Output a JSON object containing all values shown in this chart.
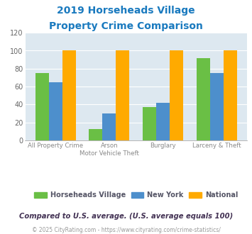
{
  "title_line1": "2019 Horseheads Village",
  "title_line2": "Property Crime Comparison",
  "title_color": "#1a7abf",
  "cat_labels_top": [
    "",
    "Arson",
    "",
    "Burglary",
    ""
  ],
  "cat_labels_bottom": [
    "All Property Crime",
    "Motor Vehicle Theft",
    "",
    "Larceny & Theft",
    ""
  ],
  "horseheads": [
    75,
    13,
    37,
    92
  ],
  "newyork": [
    65,
    30,
    42,
    75
  ],
  "national": [
    100,
    100,
    100,
    100
  ],
  "colors": {
    "horseheads": "#6abf45",
    "newyork": "#4d8fcc",
    "national": "#ffaa00"
  },
  "ylim": [
    0,
    120
  ],
  "yticks": [
    0,
    20,
    40,
    60,
    80,
    100,
    120
  ],
  "background_color": "#dde8f0",
  "legend_labels": [
    "Horseheads Village",
    "New York",
    "National"
  ],
  "legend_text_color": "#555566",
  "footnote1": "Compared to U.S. average. (U.S. average equals 100)",
  "footnote2": "© 2025 CityRating.com - https://www.cityrating.com/crime-statistics/",
  "footnote1_color": "#443355",
  "footnote2_color": "#999999",
  "url_color": "#4488cc"
}
